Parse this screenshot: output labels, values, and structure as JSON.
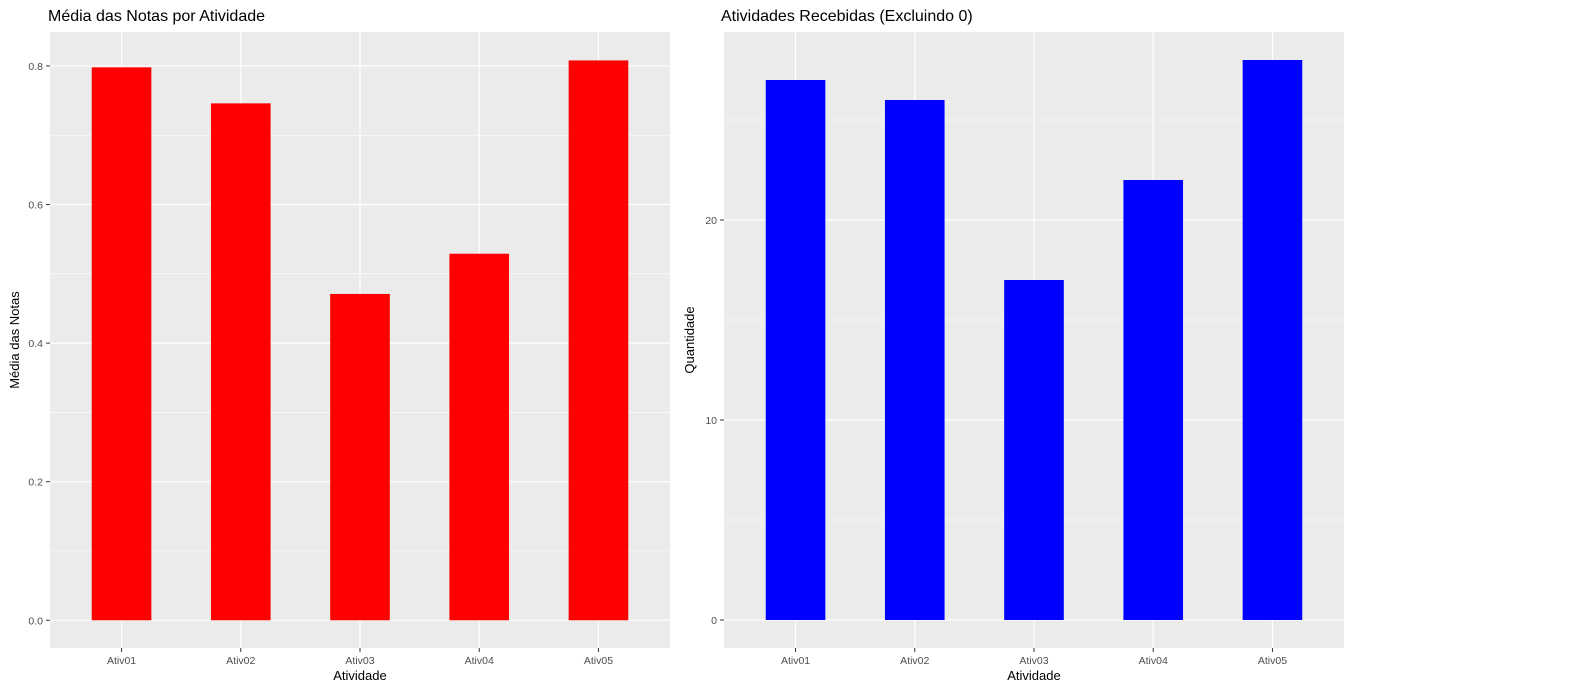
{
  "chart_data": [
    {
      "type": "bar",
      "title": "Média das Notas por Atividade",
      "xlabel": "Atividade",
      "ylabel": "Média das Notas",
      "categories": [
        "Ativ01",
        "Ativ02",
        "Ativ03",
        "Ativ04",
        "Ativ05"
      ],
      "values": [
        0.798,
        0.746,
        0.471,
        0.529,
        0.808
      ],
      "ylim": [
        -0.04,
        0.849
      ],
      "yticks": [
        "0.0",
        "0.2",
        "0.4",
        "0.6",
        "0.8"
      ],
      "ytick_values": [
        0,
        0.2,
        0.4,
        0.6,
        0.8
      ],
      "bar_color": "#FF0000",
      "panel_bg": "#EBEBEB",
      "grid": true
    },
    {
      "type": "bar",
      "title": "Atividades Recebidas (Excluindo 0)",
      "xlabel": "Atividade",
      "ylabel": "Quantidade",
      "categories": [
        "Ativ01",
        "Ativ02",
        "Ativ03",
        "Ativ04",
        "Ativ05"
      ],
      "values": [
        27,
        26,
        17,
        22,
        28
      ],
      "ylim": [
        -1.4,
        29.4
      ],
      "yticks": [
        "0",
        "10",
        "20"
      ],
      "ytick_values": [
        0,
        10,
        20
      ],
      "bar_color": "#0000FF",
      "panel_bg": "#EBEBEB",
      "grid": true
    }
  ]
}
